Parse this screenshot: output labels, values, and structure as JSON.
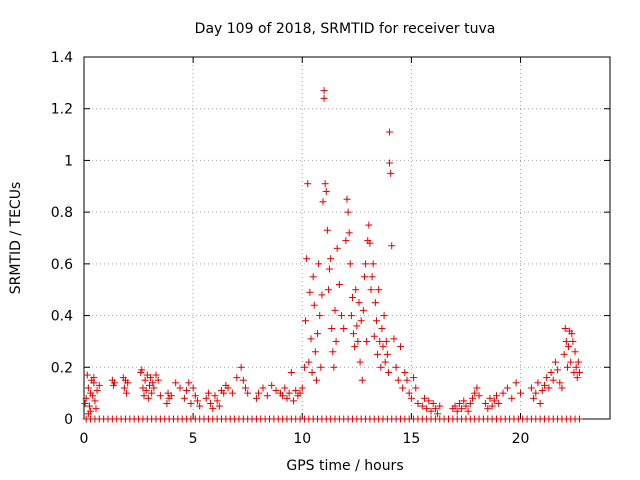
{
  "chart_data": {
    "type": "scatter",
    "title": "Day 109 of 2018, SRMTID for receiver tuva",
    "xlabel": "GPS time / hours",
    "ylabel": "SRMTID / TECUs",
    "xlim": [
      0,
      24.1
    ],
    "ylim": [
      0,
      1.4
    ],
    "xticks": [
      0,
      5,
      10,
      15,
      20
    ],
    "xtick_labels": [
      "0",
      "5",
      "10",
      "15",
      "20"
    ],
    "yticks": [
      0,
      0.2,
      0.4,
      0.6,
      0.8,
      1.0,
      1.2,
      1.4
    ],
    "ytick_labels": [
      "0",
      "0.2",
      "0.4",
      "0.6",
      "0.8",
      "1",
      "1.2",
      "1.4"
    ],
    "grid": true,
    "marker": "+",
    "color": "#e00000",
    "series": [
      {
        "name": "SRMTID",
        "x": [
          0.05,
          0.1,
          0.15,
          0.2,
          0.25,
          0.3,
          0.35,
          0.4,
          0.45,
          0.5,
          0.55,
          0.6,
          0.3,
          0.45,
          0.2,
          0.7,
          1.3,
          1.35,
          1.4,
          1.8,
          1.85,
          1.9,
          1.95,
          2.0,
          2.6,
          2.65,
          2.7,
          2.75,
          2.8,
          2.85,
          2.9,
          2.95,
          3.0,
          3.05,
          3.1,
          3.15,
          3.2,
          3.3,
          3.4,
          3.5,
          3.8,
          3.85,
          3.9,
          4.0,
          4.2,
          4.4,
          4.6,
          4.7,
          4.8,
          4.9,
          5.0,
          5.1,
          5.2,
          5.3,
          5.6,
          5.7,
          5.8,
          5.9,
          6.0,
          6.1,
          6.2,
          6.3,
          6.4,
          6.5,
          6.6,
          6.8,
          7.0,
          7.2,
          7.3,
          7.4,
          7.5,
          7.9,
          8.0,
          8.2,
          8.4,
          8.6,
          8.8,
          9.0,
          9.1,
          9.2,
          9.3,
          9.4,
          9.5,
          9.6,
          9.7,
          9.8,
          9.9,
          10.0,
          10.1,
          10.15,
          10.2,
          10.25,
          10.3,
          10.35,
          10.4,
          10.45,
          10.5,
          10.55,
          10.6,
          10.65,
          10.7,
          10.75,
          10.8,
          10.85,
          10.9,
          10.95,
          11.0,
          11.0,
          11.05,
          11.1,
          11.15,
          11.2,
          11.25,
          11.3,
          11.35,
          11.4,
          11.45,
          11.5,
          11.55,
          11.6,
          11.7,
          11.8,
          11.9,
          12.0,
          12.05,
          12.1,
          12.15,
          12.2,
          12.25,
          12.3,
          12.35,
          12.4,
          12.45,
          12.5,
          12.55,
          12.6,
          12.65,
          12.7,
          12.75,
          12.8,
          12.85,
          12.9,
          12.95,
          13.0,
          13.05,
          13.1,
          13.15,
          13.2,
          13.25,
          13.3,
          13.35,
          13.4,
          13.45,
          13.5,
          13.55,
          13.6,
          13.65,
          13.7,
          13.75,
          13.8,
          13.85,
          13.9,
          13.95,
          14.0,
          14.0,
          14.05,
          14.1,
          14.2,
          14.3,
          14.4,
          14.5,
          14.6,
          14.7,
          14.8,
          14.9,
          15.0,
          15.1,
          15.2,
          15.3,
          15.5,
          15.6,
          15.7,
          15.8,
          15.9,
          16.0,
          16.1,
          16.2,
          16.3,
          16.9,
          17.0,
          17.1,
          17.2,
          17.3,
          17.4,
          17.5,
          17.6,
          17.7,
          17.8,
          17.9,
          18.0,
          18.1,
          18.4,
          18.5,
          18.6,
          18.7,
          18.8,
          18.9,
          19.0,
          19.2,
          19.4,
          19.6,
          19.8,
          20.0,
          20.5,
          20.6,
          20.7,
          20.8,
          20.9,
          21.0,
          21.1,
          21.2,
          21.3,
          21.4,
          21.5,
          21.6,
          21.7,
          21.8,
          21.9,
          22.0,
          22.05,
          22.1,
          22.15,
          22.2,
          22.25,
          22.3,
          22.35,
          22.4,
          22.45,
          22.5,
          22.55,
          22.6,
          22.65,
          22.7
        ],
        "y": [
          0.06,
          0.08,
          0.17,
          0.12,
          0.05,
          0.1,
          0.15,
          0.09,
          0.14,
          0.07,
          0.04,
          0.11,
          0.03,
          0.16,
          0.02,
          0.13,
          0.15,
          0.13,
          0.14,
          0.16,
          0.12,
          0.15,
          0.1,
          0.14,
          0.18,
          0.19,
          0.12,
          0.09,
          0.15,
          0.11,
          0.17,
          0.08,
          0.13,
          0.16,
          0.1,
          0.14,
          0.12,
          0.17,
          0.15,
          0.09,
          0.06,
          0.1,
          0.08,
          0.09,
          0.14,
          0.12,
          0.08,
          0.11,
          0.14,
          0.06,
          0.12,
          0.09,
          0.07,
          0.05,
          0.08,
          0.1,
          0.06,
          0.04,
          0.09,
          0.07,
          0.05,
          0.11,
          0.1,
          0.13,
          0.12,
          0.1,
          0.16,
          0.2,
          0.15,
          0.12,
          0.1,
          0.08,
          0.1,
          0.12,
          0.09,
          0.13,
          0.11,
          0.1,
          0.09,
          0.12,
          0.08,
          0.1,
          0.18,
          0.07,
          0.11,
          0.09,
          0.1,
          0.12,
          0.2,
          0.38,
          0.62,
          0.91,
          0.22,
          0.49,
          0.31,
          0.18,
          0.55,
          0.44,
          0.26,
          0.15,
          0.33,
          0.6,
          0.4,
          0.2,
          0.48,
          0.84,
          1.27,
          1.24,
          0.91,
          0.88,
          0.73,
          0.5,
          0.58,
          0.62,
          0.35,
          0.26,
          0.2,
          0.42,
          0.3,
          0.66,
          0.52,
          0.4,
          0.35,
          0.69,
          0.85,
          0.8,
          0.72,
          0.6,
          0.4,
          0.47,
          0.33,
          0.28,
          0.5,
          0.36,
          0.3,
          0.45,
          0.22,
          0.38,
          0.15,
          0.42,
          0.55,
          0.6,
          0.3,
          0.69,
          0.75,
          0.68,
          0.5,
          0.55,
          0.6,
          0.32,
          0.45,
          0.38,
          0.25,
          0.5,
          0.3,
          0.2,
          0.35,
          0.28,
          0.4,
          0.22,
          0.3,
          0.25,
          0.18,
          1.11,
          0.99,
          0.95,
          0.67,
          0.31,
          0.2,
          0.15,
          0.28,
          0.12,
          0.18,
          0.15,
          0.1,
          0.08,
          0.16,
          0.12,
          0.06,
          0.05,
          0.08,
          0.04,
          0.07,
          0.03,
          0.06,
          0.04,
          0.02,
          0.05,
          0.04,
          0.05,
          0.03,
          0.06,
          0.04,
          0.07,
          0.05,
          0.03,
          0.06,
          0.08,
          0.1,
          0.12,
          0.09,
          0.06,
          0.04,
          0.08,
          0.05,
          0.07,
          0.09,
          0.06,
          0.1,
          0.12,
          0.08,
          0.14,
          0.1,
          0.12,
          0.08,
          0.1,
          0.14,
          0.06,
          0.11,
          0.13,
          0.16,
          0.12,
          0.18,
          0.15,
          0.22,
          0.19,
          0.14,
          0.12,
          0.25,
          0.35,
          0.3,
          0.2,
          0.28,
          0.34,
          0.22,
          0.33,
          0.3,
          0.18,
          0.26,
          0.2,
          0.16,
          0.22,
          0.18
        ]
      },
      {
        "name": "zero-baseline",
        "x": [
          0.1,
          0.3,
          0.5,
          0.7,
          0.9,
          1.1,
          1.3,
          1.5,
          1.7,
          1.9,
          2.1,
          2.3,
          2.5,
          2.7,
          2.9,
          3.1,
          3.3,
          3.5,
          3.7,
          3.9,
          4.1,
          4.3,
          4.5,
          4.7,
          4.9,
          5.1,
          5.3,
          5.5,
          5.7,
          5.9,
          6.1,
          6.3,
          6.5,
          6.7,
          6.9,
          7.1,
          7.3,
          7.5,
          7.7,
          7.9,
          8.1,
          8.3,
          8.5,
          8.7,
          8.9,
          9.1,
          9.3,
          9.5,
          9.7,
          9.9,
          10.1,
          10.3,
          10.5,
          10.7,
          10.9,
          11.1,
          11.3,
          11.5,
          11.7,
          11.9,
          12.1,
          12.3,
          12.5,
          12.7,
          12.9,
          13.1,
          13.3,
          13.5,
          13.7,
          13.9,
          14.1,
          14.3,
          14.5,
          14.7,
          14.9,
          15.1,
          15.3,
          15.5,
          15.7,
          15.9,
          16.1,
          16.3,
          16.5,
          16.7,
          16.9,
          17.1,
          17.3,
          17.5,
          17.7,
          17.9,
          18.1,
          18.3,
          18.5,
          18.7,
          18.9,
          19.1,
          19.3,
          19.5,
          19.7,
          19.9,
          20.1,
          20.3,
          20.5,
          20.7,
          20.9,
          21.1,
          21.3,
          21.5,
          21.7,
          21.9,
          22.1,
          22.3,
          22.5,
          22.7
        ],
        "y": [
          0,
          0,
          0,
          0,
          0,
          0,
          0,
          0,
          0,
          0,
          0,
          0,
          0,
          0,
          0,
          0,
          0,
          0,
          0,
          0,
          0,
          0,
          0,
          0,
          0,
          0,
          0,
          0,
          0,
          0,
          0,
          0,
          0,
          0,
          0,
          0,
          0,
          0,
          0,
          0,
          0,
          0,
          0,
          0,
          0,
          0,
          0,
          0,
          0,
          0,
          0,
          0,
          0,
          0,
          0,
          0,
          0,
          0,
          0,
          0,
          0,
          0,
          0,
          0,
          0,
          0,
          0,
          0,
          0,
          0,
          0,
          0,
          0,
          0,
          0,
          0,
          0,
          0,
          0,
          0,
          0,
          0,
          0,
          0,
          0,
          0,
          0,
          0,
          0,
          0,
          0,
          0,
          0,
          0,
          0,
          0,
          0,
          0,
          0,
          0,
          0,
          0,
          0,
          0,
          0,
          0,
          0,
          0,
          0,
          0,
          0,
          0,
          0,
          0
        ]
      }
    ]
  }
}
